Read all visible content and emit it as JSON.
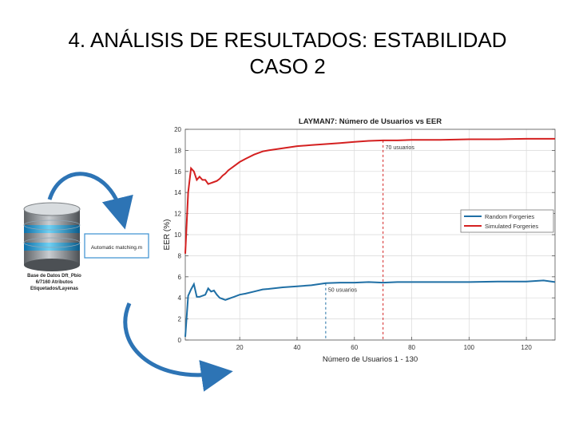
{
  "slide": {
    "title_line1": "4. ANÁLISIS DE RESULTADOS: ESTABILIDAD",
    "title_line2": "CASO 2"
  },
  "diagram": {
    "database_label": [
      "Base de Datos Dft_Pbio",
      "6/7160 Atributos",
      "Etiquetados/Layenas"
    ],
    "matching_box_label": "Automatic matching.m"
  },
  "colors": {
    "random": "#1f6fa5",
    "simulated": "#d42020",
    "arrow": "#2d74b5",
    "grid": "#d9d9d9"
  },
  "chart_data": {
    "type": "line",
    "title": "LAYMAN7: Número de Usuarios vs EER",
    "xlabel": "Número de Usuarios 1 - 130",
    "ylabel": "EER (%)",
    "xlim": [
      1,
      130
    ],
    "ylim": [
      0,
      20
    ],
    "xticks": [
      20,
      40,
      60,
      80,
      100,
      120
    ],
    "yticks": [
      0,
      2,
      4,
      6,
      8,
      10,
      12,
      14,
      16,
      18,
      20
    ],
    "grid": true,
    "legend_position": "right",
    "series": [
      {
        "name": "Random Forgeries",
        "color": "#1f6fa5",
        "x": [
          1,
          2,
          3,
          4,
          5,
          6,
          7,
          8,
          9,
          10,
          11,
          12,
          13,
          14,
          15,
          16,
          17,
          18,
          20,
          22,
          25,
          28,
          30,
          35,
          40,
          45,
          50,
          55,
          60,
          65,
          70,
          75,
          80,
          90,
          100,
          110,
          120,
          126,
          130
        ],
        "y": [
          0.3,
          4.2,
          4.8,
          5.3,
          4.1,
          4.1,
          4.2,
          4.3,
          4.9,
          4.6,
          4.7,
          4.3,
          4.0,
          3.9,
          3.8,
          3.9,
          4.0,
          4.1,
          4.3,
          4.4,
          4.6,
          4.8,
          4.85,
          5.0,
          5.1,
          5.2,
          5.4,
          5.45,
          5.45,
          5.5,
          5.45,
          5.5,
          5.5,
          5.5,
          5.5,
          5.55,
          5.55,
          5.65,
          5.5
        ]
      },
      {
        "name": "Simulated Forgeries",
        "color": "#d42020",
        "x": [
          1,
          2,
          3,
          4,
          5,
          6,
          7,
          8,
          9,
          10,
          11,
          12,
          13,
          14,
          15,
          16,
          18,
          20,
          22,
          25,
          28,
          30,
          35,
          40,
          45,
          50,
          55,
          60,
          65,
          70,
          75,
          80,
          90,
          100,
          110,
          120,
          130
        ],
        "y": [
          8.2,
          14.0,
          16.3,
          16.0,
          15.2,
          15.5,
          15.2,
          15.2,
          14.8,
          14.9,
          15.0,
          15.1,
          15.3,
          15.6,
          15.8,
          16.1,
          16.5,
          16.9,
          17.2,
          17.6,
          17.9,
          18.0,
          18.2,
          18.4,
          18.5,
          18.6,
          18.7,
          18.8,
          18.9,
          18.95,
          18.95,
          19.0,
          19.0,
          19.05,
          19.05,
          19.1,
          19.1
        ]
      }
    ],
    "annotations": [
      {
        "text": "50 usuarios",
        "x": 50,
        "series": "Random Forgeries"
      },
      {
        "text": "70 usuarios",
        "x": 70,
        "series": "Simulated Forgeries"
      }
    ],
    "legend_labels": [
      "Random Forgeries",
      "Simulated Forgeries"
    ]
  }
}
